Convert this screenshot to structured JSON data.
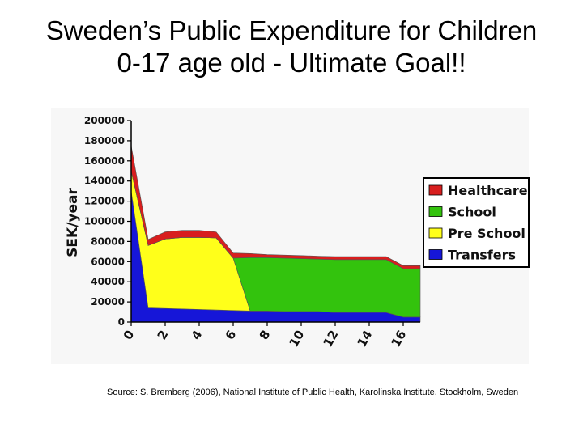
{
  "slide": {
    "title_line1": "Sweden’s Public Expenditure for Children",
    "title_line2": "0-17 age old - Ultimate Goal!!",
    "source": "Source: S. Bremberg (2006), National Institute of Public Health, Karolinska Institute, Stockholm, Sweden"
  },
  "colors": {
    "Healthcare": "#d81e1e",
    "School": "#33c30d",
    "Pre School": "#ffff1a",
    "Transfers": "#1616d8",
    "panel_background": "#f7f7f7"
  },
  "chart_data": {
    "type": "area",
    "stacked": true,
    "xlabel": "",
    "ylabel": "SEK/year",
    "xlim": [
      0,
      17
    ],
    "ylim": [
      0,
      200000
    ],
    "x_ticks": [
      "0",
      "2",
      "4",
      "6",
      "8",
      "10",
      "12",
      "14",
      "16"
    ],
    "y_ticks": [
      "0",
      "20000",
      "40000",
      "60000",
      "80000",
      "100000",
      "120000",
      "140000",
      "160000",
      "180000",
      "200000"
    ],
    "grid": false,
    "legend_position": "right",
    "x": [
      0,
      1,
      2,
      3,
      4,
      5,
      6,
      7,
      8,
      9,
      10,
      11,
      12,
      13,
      14,
      15,
      16,
      17
    ],
    "series": [
      {
        "name": "Transfers",
        "values": [
          130000,
          14000,
          13500,
          13000,
          12500,
          12000,
          11500,
          11000,
          11000,
          10500,
          10500,
          10500,
          9500,
          9500,
          9500,
          9500,
          5000,
          5000
        ]
      },
      {
        "name": "Pre School",
        "values": [
          20000,
          62000,
          69000,
          71000,
          71500,
          71500,
          52000,
          0,
          0,
          0,
          0,
          0,
          0,
          0,
          0,
          0,
          0,
          0
        ]
      },
      {
        "name": "School",
        "values": [
          0,
          0,
          0,
          0,
          0,
          0,
          0,
          53000,
          53000,
          53000,
          52500,
          52000,
          52500,
          52500,
          52500,
          52500,
          48000,
          48000
        ]
      },
      {
        "name": "Healthcare",
        "values": [
          25000,
          6000,
          7000,
          7000,
          7000,
          6000,
          5000,
          4000,
          3000,
          3000,
          3000,
          3000,
          3000,
          3000,
          3000,
          3000,
          3000,
          3000
        ]
      }
    ]
  }
}
